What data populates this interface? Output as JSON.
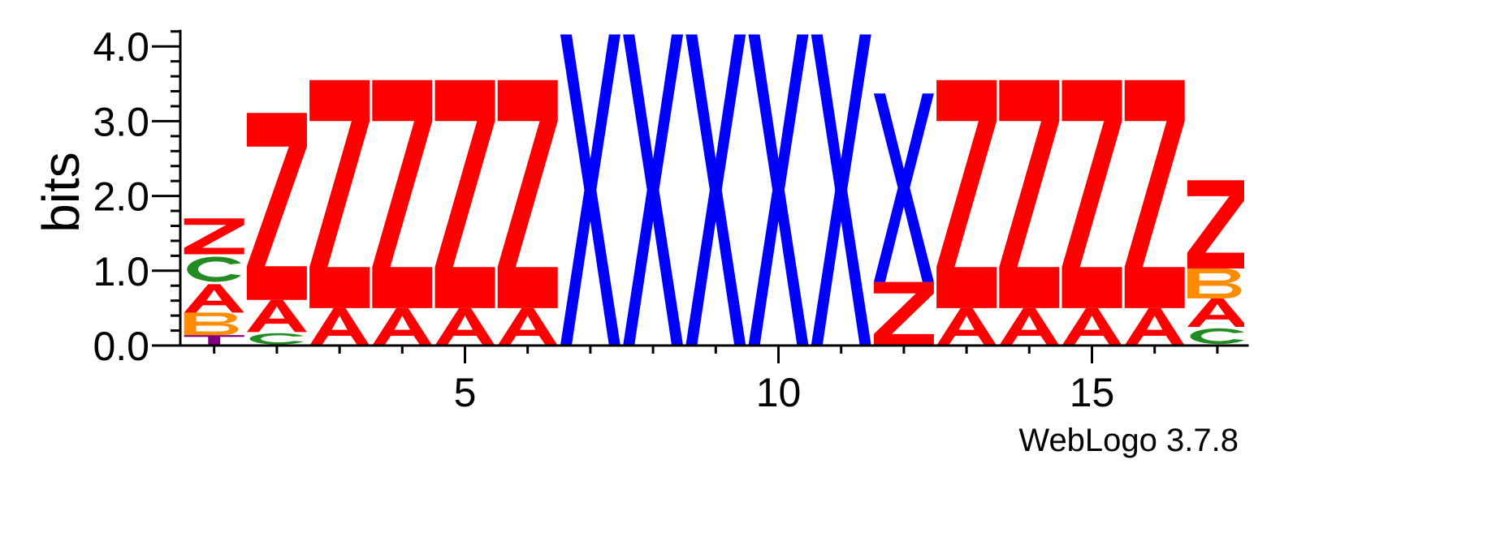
{
  "chart_data": {
    "type": "sequence_logo",
    "ylabel": "bits",
    "ylim": [
      0,
      4.2
    ],
    "yticks": [
      {
        "value": 0.0,
        "label": "0.0"
      },
      {
        "value": 1.0,
        "label": "1.0"
      },
      {
        "value": 2.0,
        "label": "2.0"
      },
      {
        "value": 3.0,
        "label": "3.0"
      },
      {
        "value": 4.0,
        "label": "4.0"
      }
    ],
    "xticks": [
      {
        "value": 5,
        "label": "5"
      },
      {
        "value": 10,
        "label": "10"
      },
      {
        "value": 15,
        "label": "15"
      }
    ],
    "xlim": [
      0.5,
      17.5
    ],
    "colors": {
      "Z": "#ff0000",
      "A": "#ff0000",
      "X": "#0000ff",
      "C": "#228b22",
      "B": "#ff8c00",
      "T": "#800080"
    },
    "positions": [
      {
        "pos": 1,
        "letters": [
          [
            "T",
            0.14
          ],
          [
            "B",
            0.3
          ],
          [
            "A",
            0.38
          ],
          [
            "C",
            0.4
          ],
          [
            "Z",
            0.48
          ]
        ]
      },
      {
        "pos": 2,
        "letters": [
          [
            "C",
            0.18
          ],
          [
            "A",
            0.43
          ],
          [
            "Z",
            2.5
          ]
        ]
      },
      {
        "pos": 3,
        "letters": [
          [
            "A",
            0.5
          ],
          [
            "Z",
            3.05
          ]
        ]
      },
      {
        "pos": 4,
        "letters": [
          [
            "A",
            0.5
          ],
          [
            "Z",
            3.05
          ]
        ]
      },
      {
        "pos": 5,
        "letters": [
          [
            "A",
            0.5
          ],
          [
            "Z",
            3.05
          ]
        ]
      },
      {
        "pos": 6,
        "letters": [
          [
            "A",
            0.5
          ],
          [
            "Z",
            3.05
          ]
        ]
      },
      {
        "pos": 7,
        "letters": [
          [
            "X",
            4.16
          ]
        ]
      },
      {
        "pos": 8,
        "letters": [
          [
            "X",
            4.16
          ]
        ]
      },
      {
        "pos": 9,
        "letters": [
          [
            "X",
            4.16
          ]
        ]
      },
      {
        "pos": 10,
        "letters": [
          [
            "X",
            4.16
          ]
        ]
      },
      {
        "pos": 11,
        "letters": [
          [
            "X",
            4.16
          ]
        ]
      },
      {
        "pos": 12,
        "letters": [
          [
            "Z",
            0.85
          ],
          [
            "X",
            2.52
          ]
        ]
      },
      {
        "pos": 13,
        "letters": [
          [
            "A",
            0.5
          ],
          [
            "Z",
            3.05
          ]
        ]
      },
      {
        "pos": 14,
        "letters": [
          [
            "A",
            0.5
          ],
          [
            "Z",
            3.05
          ]
        ]
      },
      {
        "pos": 15,
        "letters": [
          [
            "A",
            0.5
          ],
          [
            "Z",
            3.05
          ]
        ]
      },
      {
        "pos": 16,
        "letters": [
          [
            "A",
            0.5
          ],
          [
            "Z",
            3.05
          ]
        ]
      },
      {
        "pos": 17,
        "letters": [
          [
            "C",
            0.25
          ],
          [
            "A",
            0.38
          ],
          [
            "B",
            0.4
          ],
          [
            "Z",
            1.18
          ]
        ]
      }
    ]
  },
  "footer": "WebLogo 3.7.8"
}
